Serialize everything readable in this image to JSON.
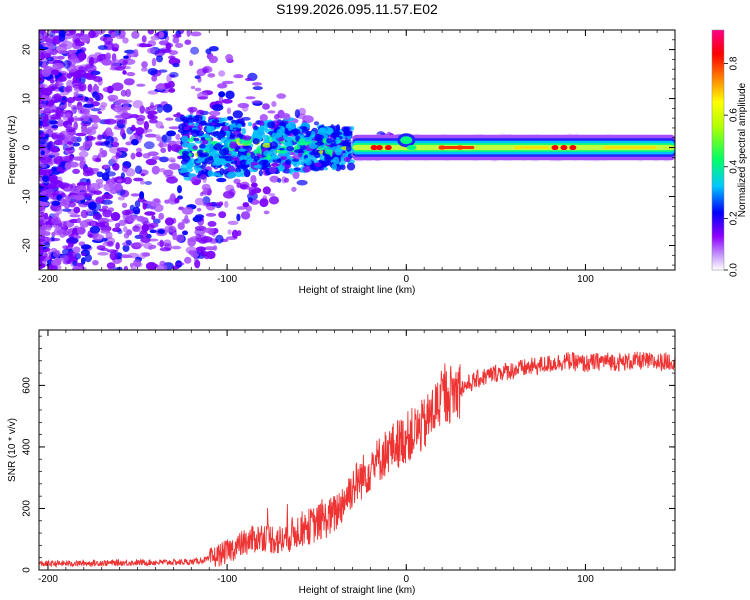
{
  "chart_data": [
    {
      "type": "heatmap",
      "title": "S199.2026.095.11.57.E02",
      "xlabel": "Height of straight line (km)",
      "ylabel": "Frequency (Hz)",
      "xlim": [
        -205,
        150
      ],
      "ylim": [
        -25,
        24
      ],
      "xticks": [
        -200,
        -100,
        0,
        100
      ],
      "yticks": [
        -20,
        -10,
        0,
        10,
        20
      ],
      "colorbar": {
        "label": "Normalized spectral amplitude",
        "range": [
          0,
          0.93
        ],
        "ticks": [
          0.0,
          0.2,
          0.4,
          0.6,
          0.8
        ],
        "stops": [
          "#ffffff",
          "#8f00ff",
          "#0000ff",
          "#00ffff",
          "#00ff00",
          "#ffff00",
          "#ff8000",
          "#ff0000",
          "#ff0088"
        ]
      },
      "description_points": {
        "band_center_hz": 0,
        "band_halfwidth_hz": 1,
        "coherent_from_km": -30,
        "features": [
          {
            "x": -18,
            "amp": 0.85
          },
          {
            "x": -15,
            "amp": 0.85
          },
          {
            "x": -10,
            "amp": 0.85
          },
          {
            "x": 3,
            "amp": 0.45
          },
          {
            "x": 20,
            "amp": 0.8
          },
          {
            "x": 30,
            "amp": 0.8
          },
          {
            "x": 83,
            "amp": 0.85
          },
          {
            "x": 88,
            "amp": 0.85
          },
          {
            "x": 93,
            "amp": 0.85
          }
        ]
      }
    },
    {
      "type": "line",
      "xlabel": "Height of straight line (km)",
      "ylabel": "SNR (10 * v/v)",
      "xlim": [
        -205,
        150
      ],
      "ylim": [
        0,
        780
      ],
      "xticks": [
        -200,
        -100,
        0,
        100
      ],
      "yticks": [
        0,
        200,
        400,
        600
      ],
      "color": "#ee3333",
      "series": [
        {
          "name": "SNR",
          "x": [
            -205,
            -180,
            -150,
            -120,
            -110,
            -100,
            -90,
            -80,
            -70,
            -60,
            -50,
            -40,
            -30,
            -20,
            -10,
            0,
            10,
            20,
            30,
            40,
            50,
            60,
            70,
            80,
            90,
            100,
            110,
            120,
            130,
            140,
            150
          ],
          "y": [
            20,
            22,
            24,
            26,
            35,
            60,
            90,
            110,
            95,
            130,
            150,
            180,
            270,
            330,
            390,
            430,
            470,
            560,
            590,
            620,
            640,
            650,
            660,
            670,
            680,
            670,
            680,
            675,
            680,
            675,
            680
          ]
        }
      ]
    }
  ]
}
